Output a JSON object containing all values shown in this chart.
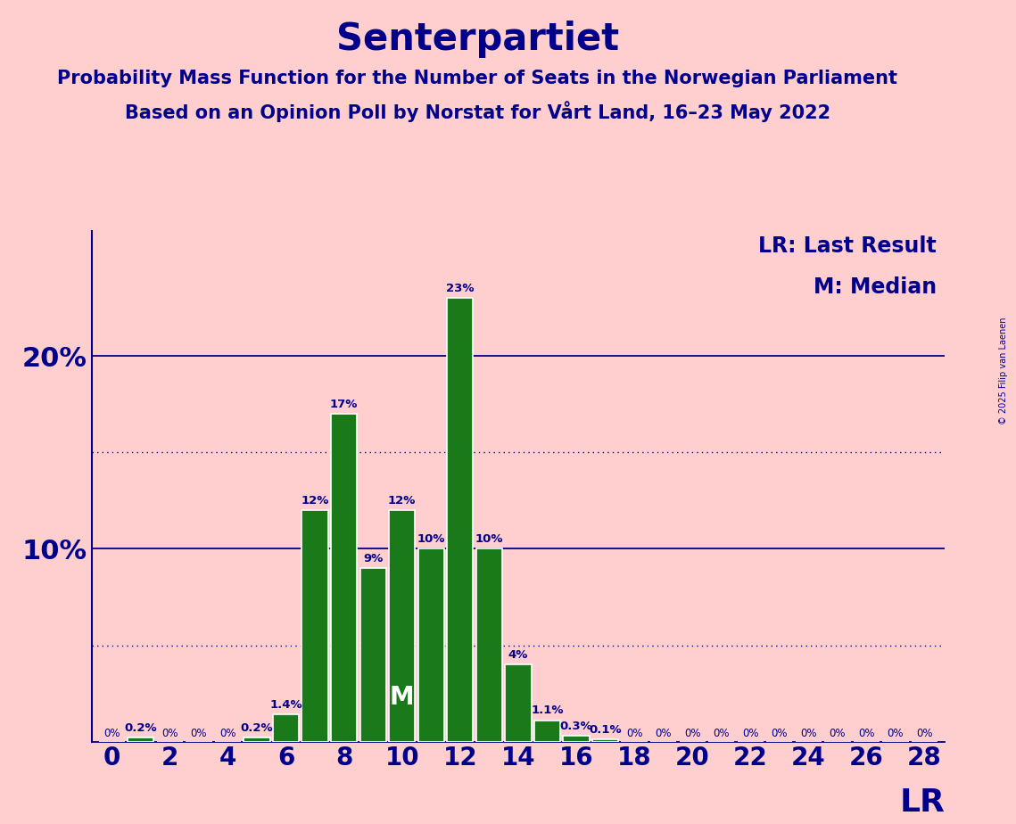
{
  "title": "Senterpartiet",
  "subtitle1": "Probability Mass Function for the Number of Seats in the Norwegian Parliament",
  "subtitle2": "Based on an Opinion Poll by Norstat for Vårt Land, 16–23 May 2022",
  "copyright": "© 2025 Filip van Laenen",
  "background_color": "#FFCFCF",
  "bar_color": "#1a7a1a",
  "bar_edge_color": "#ffffff",
  "title_color": "#00008B",
  "text_color": "#00008B",
  "seats": [
    0,
    1,
    2,
    3,
    4,
    5,
    6,
    7,
    8,
    9,
    10,
    11,
    12,
    13,
    14,
    15,
    16,
    17,
    18,
    19,
    20,
    21,
    22,
    23,
    24,
    25,
    26,
    27,
    28
  ],
  "probabilities": [
    0.0,
    0.002,
    0.0,
    0.0,
    0.0,
    0.002,
    0.014,
    0.12,
    0.17,
    0.09,
    0.12,
    0.1,
    0.23,
    0.1,
    0.04,
    0.011,
    0.003,
    0.001,
    0.0,
    0.0,
    0.0,
    0.0,
    0.0,
    0.0,
    0.0,
    0.0,
    0.0,
    0.0,
    0.0
  ],
  "bar_labels": [
    "0%",
    "0.2%",
    "0%",
    "0%",
    "0%",
    "0.2%",
    "1.4%",
    "12%",
    "17%",
    "9%",
    "12%",
    "10%",
    "23%",
    "10%",
    "4%",
    "1.1%",
    "0.3%",
    "0.1%",
    "0%",
    "0%",
    "0%",
    "0%",
    "0%",
    "0%",
    "0%",
    "0%",
    "0%",
    "0%",
    "0%"
  ],
  "median_seat": 10,
  "last_result_seat": 28,
  "ylim_max": 0.265,
  "xlabel_seats": [
    0,
    2,
    4,
    6,
    8,
    10,
    12,
    14,
    16,
    18,
    20,
    22,
    24,
    26,
    28
  ],
  "legend_lr": "LR: Last Result",
  "legend_m": "M: Median",
  "lr_label": "LR",
  "m_label": "M",
  "dotted_line_y": [
    0.05,
    0.15
  ],
  "solid_line_y": [
    0.1,
    0.2
  ],
  "bar_width": 0.9,
  "title_fontsize": 30,
  "subtitle_fontsize": 15,
  "ytick_fontsize": 22,
  "xtick_fontsize": 20,
  "legend_fontsize": 17,
  "label_fontsize": 9.5,
  "m_fontsize": 20,
  "lr_fontsize": 26,
  "copyright_fontsize": 7
}
